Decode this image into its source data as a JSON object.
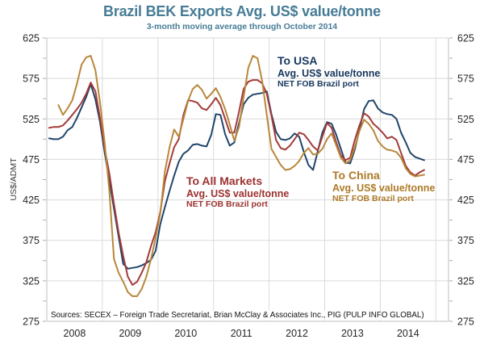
{
  "header": {
    "title": "Brazil BEK Exports Avg. US$ value/tonne",
    "subtitle": "3-month moving average through October 2014"
  },
  "y_axis": {
    "label": "US$/ADMT",
    "ticks": [
      625,
      575,
      525,
      475,
      425,
      375,
      325,
      275
    ]
  },
  "x_axis": {
    "years": [
      "2008",
      "2009",
      "2010",
      "2011",
      "2012",
      "2013",
      "2014"
    ]
  },
  "source_note": "Sources: SECEX – Foreign Trade Secretariat, Brian McClay & Associates Inc., PIG (PULP INFO GLOBAL)",
  "annotations": [
    {
      "title": "To USA",
      "line2": "Avg. US$ value/tonne",
      "line3": "NET FOB Brazil port",
      "color": "#17375E"
    },
    {
      "title": "To All Markets",
      "line2": "Avg. US$ value/tonne",
      "line3": "NET FOB Brazil port",
      "color": "#9C3230"
    },
    {
      "title": "To China",
      "line2": "Avg. US$ value/tonne",
      "line3": "NET FOB Brazil port",
      "color": "#AC7A28"
    }
  ],
  "colors": {
    "title_text": "#467C96",
    "grid": "#DADADA",
    "axis": "#BFBFBF",
    "tick_text": "#262626"
  },
  "chart_data": {
    "type": "line",
    "title": "Brazil BEK Exports Avg. US$ value/tonne",
    "subtitle": "3-month moving average through October 2014",
    "xlabel": "",
    "ylabel": "US$/ADMT",
    "ylim": [
      275,
      625
    ],
    "ytick_step": 50,
    "y_minor_step": 25,
    "x_start_year": 2008,
    "x_end_year_line": 2015,
    "grid": "on",
    "legend_position": "inline-annotations",
    "x_unit": "month",
    "series": [
      {
        "name": "To USA",
        "color": "#20456A",
        "start_month": "2008-01",
        "values": [
          501,
          500,
          500,
          503,
          511,
          515,
          526,
          539,
          552,
          568,
          549,
          521,
          483,
          449,
          414,
          380,
          346,
          340,
          341,
          342,
          344,
          347,
          351,
          362,
          395,
          416,
          436,
          455,
          472,
          482,
          486,
          493,
          494,
          492,
          491,
          505,
          531,
          530,
          506,
          492,
          496,
          520,
          543,
          551,
          555,
          556,
          557,
          559,
          531,
          509,
          500,
          499,
          501,
          507,
          503,
          484,
          468,
          462,
          485,
          508,
          521,
          519,
          505,
          488,
          471,
          470,
          487,
          512,
          537,
          547,
          548,
          538,
          533,
          531,
          530,
          525,
          508,
          496,
          483,
          478,
          476,
          474
        ]
      },
      {
        "name": "To All Markets",
        "color": "#A23B38",
        "start_month": "2008-01",
        "values": [
          514,
          515,
          515,
          517,
          523,
          530,
          537,
          545,
          556,
          570,
          559,
          526,
          488,
          458,
          420,
          385,
          356,
          330,
          320,
          324,
          335,
          348,
          368,
          385,
          410,
          448,
          470,
          490,
          500,
          530,
          548,
          547,
          545,
          538,
          536,
          543,
          551,
          542,
          525,
          508,
          508,
          534,
          562,
          571,
          573,
          573,
          569,
          556,
          529,
          499,
          489,
          487,
          492,
          500,
          508,
          506,
          499,
          491,
          486,
          503,
          520,
          514,
          496,
          480,
          474,
          477,
          499,
          517,
          532,
          528,
          519,
          514,
          508,
          501,
          503,
          499,
          483,
          467,
          459,
          455,
          459,
          462
        ]
      },
      {
        "name": "To China",
        "color": "#B8873B",
        "start_month": "2008-03",
        "values": [
          542,
          530,
          538,
          548,
          568,
          592,
          601,
          603,
          585,
          545,
          495,
          437,
          352,
          335,
          324,
          311,
          306,
          306,
          315,
          330,
          352,
          378,
          408,
          460,
          490,
          512,
          503,
          525,
          547,
          562,
          567,
          561,
          550,
          556,
          563,
          552,
          537,
          518,
          498,
          515,
          552,
          588,
          603,
          600,
          572,
          530,
          488,
          478,
          468,
          462,
          463,
          467,
          473,
          483,
          489,
          481,
          482,
          488,
          500,
          507,
          492,
          477,
          470,
          474,
          490,
          510,
          524,
          519,
          511,
          498,
          491,
          487,
          486,
          484,
          477,
          464,
          457,
          454,
          455,
          456
        ]
      }
    ]
  }
}
